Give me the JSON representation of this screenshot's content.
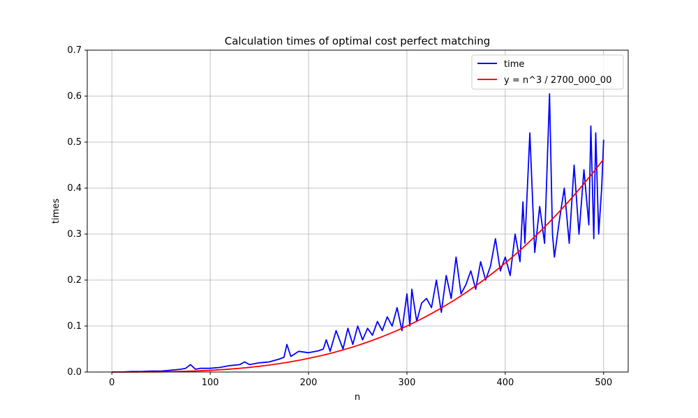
{
  "chart_data": {
    "type": "line",
    "title": "Calculation times of optimal cost perfect matching",
    "xlabel": "n",
    "ylabel": "times",
    "xlim": [
      -25,
      525
    ],
    "ylim": [
      0,
      0.7
    ],
    "x_ticks": [
      0,
      100,
      200,
      300,
      400,
      500
    ],
    "y_ticks": [
      0.0,
      0.1,
      0.2,
      0.3,
      0.4,
      0.5,
      0.6,
      0.7
    ],
    "x_tick_labels": [
      "0",
      "100",
      "200",
      "300",
      "400",
      "500"
    ],
    "y_tick_labels": [
      "0.0",
      "0.1",
      "0.2",
      "0.3",
      "0.4",
      "0.5",
      "0.6",
      "0.7"
    ],
    "grid": true,
    "legend_position": "top-right",
    "series": [
      {
        "name": "time",
        "color": "#0000ff",
        "x": [
          0,
          10,
          20,
          30,
          40,
          50,
          60,
          70,
          75,
          80,
          85,
          90,
          100,
          110,
          120,
          130,
          135,
          140,
          150,
          160,
          170,
          175,
          178,
          182,
          190,
          200,
          210,
          215,
          218,
          222,
          228,
          235,
          240,
          245,
          250,
          255,
          260,
          265,
          270,
          275,
          280,
          285,
          290,
          295,
          300,
          303,
          305,
          310,
          315,
          320,
          325,
          330,
          335,
          340,
          345,
          350,
          355,
          360,
          365,
          370,
          375,
          380,
          385,
          390,
          395,
          400,
          405,
          410,
          415,
          418,
          420,
          425,
          430,
          435,
          440,
          445,
          448,
          450,
          455,
          460,
          465,
          470,
          475,
          480,
          485,
          487,
          490,
          492,
          495,
          498,
          500
        ],
        "values": [
          0.0,
          0.0,
          0.001,
          0.001,
          0.002,
          0.002,
          0.004,
          0.006,
          0.008,
          0.016,
          0.006,
          0.008,
          0.008,
          0.01,
          0.014,
          0.016,
          0.022,
          0.016,
          0.02,
          0.022,
          0.028,
          0.032,
          0.06,
          0.034,
          0.045,
          0.042,
          0.046,
          0.05,
          0.07,
          0.045,
          0.09,
          0.05,
          0.095,
          0.06,
          0.1,
          0.07,
          0.095,
          0.08,
          0.11,
          0.09,
          0.12,
          0.1,
          0.14,
          0.09,
          0.17,
          0.1,
          0.18,
          0.11,
          0.15,
          0.16,
          0.14,
          0.2,
          0.13,
          0.21,
          0.16,
          0.25,
          0.17,
          0.19,
          0.22,
          0.18,
          0.24,
          0.2,
          0.23,
          0.29,
          0.22,
          0.25,
          0.21,
          0.3,
          0.24,
          0.37,
          0.28,
          0.52,
          0.26,
          0.36,
          0.28,
          0.605,
          0.3,
          0.25,
          0.33,
          0.4,
          0.28,
          0.45,
          0.3,
          0.44,
          0.32,
          0.535,
          0.29,
          0.52,
          0.3,
          0.4,
          0.505
        ]
      },
      {
        "name": "y = n^3 / 2700_000_00",
        "color": "#ff0000",
        "function": "cubic",
        "divisor": 270000000,
        "x_range": [
          0,
          500
        ]
      }
    ]
  }
}
